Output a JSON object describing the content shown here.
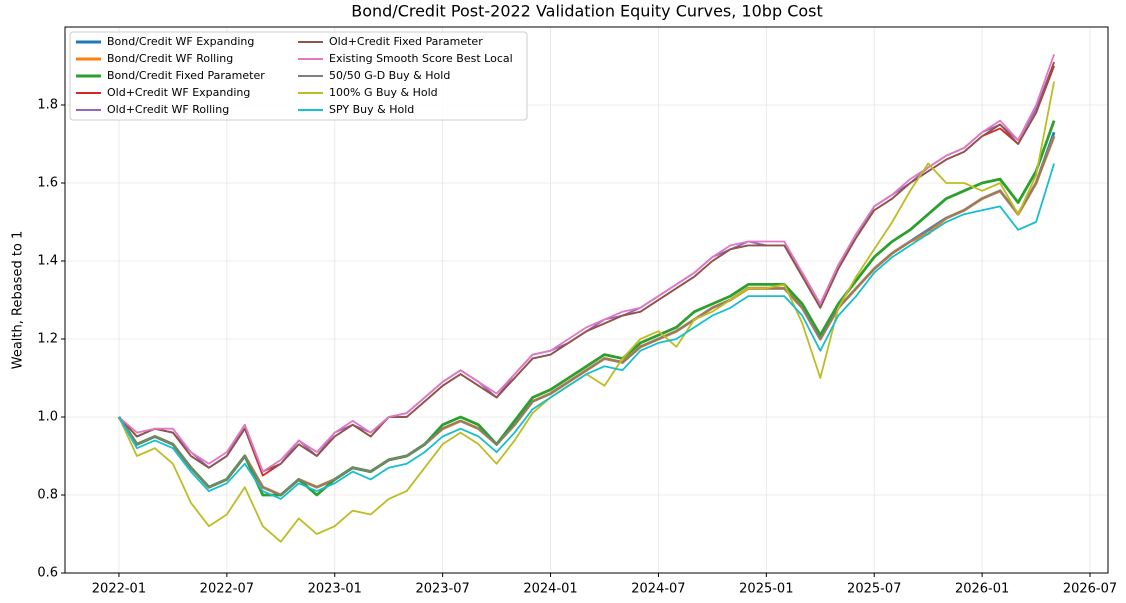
{
  "chart_data": {
    "type": "line",
    "title": "Bond/Credit Post-2022 Validation Equity Curves, 10bp Cost",
    "y_label": "Wealth, Rebased to 1",
    "x": [
      "2022-01",
      "2022-02",
      "2022-03",
      "2022-04",
      "2022-05",
      "2022-06",
      "2022-07",
      "2022-08",
      "2022-09",
      "2022-10",
      "2022-11",
      "2022-12",
      "2023-01",
      "2023-02",
      "2023-03",
      "2023-04",
      "2023-05",
      "2023-06",
      "2023-07",
      "2023-08",
      "2023-09",
      "2023-10",
      "2023-11",
      "2023-12",
      "2024-01",
      "2024-02",
      "2024-03",
      "2024-04",
      "2024-05",
      "2024-06",
      "2024-07",
      "2024-08",
      "2024-09",
      "2024-10",
      "2024-11",
      "2024-12",
      "2025-01",
      "2025-02",
      "2025-03",
      "2025-04",
      "2025-05",
      "2025-06",
      "2025-07",
      "2025-08",
      "2025-09",
      "2025-10",
      "2025-11",
      "2025-12",
      "2026-01",
      "2026-02",
      "2026-03",
      "2026-04",
      "2026-05"
    ],
    "xlim": [
      "2021-10",
      "2026-08"
    ],
    "xticks": [
      "2022-01",
      "2022-07",
      "2023-01",
      "2023-07",
      "2024-01",
      "2024-07",
      "2025-01",
      "2025-07",
      "2026-01",
      "2026-07"
    ],
    "ylim": [
      0.6,
      2.0
    ],
    "yticks": [
      0.6,
      0.8,
      {
        "value": 1,
        "label": "1.0"
      },
      1.2,
      1.4,
      1.6,
      1.8
    ],
    "grid": true,
    "legend": "upper left",
    "series": [
      {
        "name": "Bond/Credit WF Expanding",
        "color": "#1f77b4",
        "values": [
          1.0,
          0.93,
          0.95,
          0.93,
          0.87,
          0.82,
          0.84,
          0.9,
          0.82,
          0.8,
          0.84,
          0.82,
          0.84,
          0.87,
          0.86,
          0.89,
          0.9,
          0.93,
          0.97,
          0.99,
          0.97,
          0.93,
          0.98,
          1.04,
          1.06,
          1.09,
          1.12,
          1.15,
          1.14,
          1.18,
          1.2,
          1.22,
          1.25,
          1.28,
          1.3,
          1.33,
          1.33,
          1.33,
          1.28,
          1.2,
          1.28,
          1.33,
          1.38,
          1.42,
          1.45,
          1.48,
          1.51,
          1.53,
          1.56,
          1.58,
          1.52,
          1.6,
          1.73
        ]
      },
      {
        "name": "Bond/Credit WF Rolling",
        "color": "#ff7f0e",
        "values": [
          1.0,
          0.93,
          0.95,
          0.93,
          0.87,
          0.82,
          0.84,
          0.9,
          0.82,
          0.8,
          0.84,
          0.82,
          0.84,
          0.87,
          0.86,
          0.89,
          0.9,
          0.93,
          0.97,
          0.99,
          0.97,
          0.93,
          0.98,
          1.04,
          1.06,
          1.09,
          1.12,
          1.15,
          1.14,
          1.18,
          1.2,
          1.22,
          1.25,
          1.28,
          1.3,
          1.33,
          1.33,
          1.33,
          1.28,
          1.2,
          1.28,
          1.33,
          1.38,
          1.42,
          1.45,
          1.47,
          1.51,
          1.53,
          1.56,
          1.58,
          1.52,
          1.6,
          1.72
        ]
      },
      {
        "name": "Bond/Credit Fixed Parameter",
        "color": "#2ca02c",
        "values": [
          1.0,
          0.93,
          0.95,
          0.93,
          0.87,
          0.82,
          0.84,
          0.9,
          0.8,
          0.8,
          0.84,
          0.8,
          0.84,
          0.87,
          0.86,
          0.89,
          0.9,
          0.93,
          0.98,
          1.0,
          0.98,
          0.93,
          0.99,
          1.05,
          1.07,
          1.1,
          1.13,
          1.16,
          1.15,
          1.19,
          1.21,
          1.23,
          1.27,
          1.29,
          1.31,
          1.34,
          1.34,
          1.34,
          1.29,
          1.21,
          1.29,
          1.35,
          1.41,
          1.45,
          1.48,
          1.52,
          1.56,
          1.58,
          1.6,
          1.61,
          1.55,
          1.63,
          1.76
        ]
      },
      {
        "name": "Old+Credit WF Expanding",
        "color": "#d62728",
        "values": [
          1.0,
          0.95,
          0.97,
          0.96,
          0.9,
          0.87,
          0.9,
          0.97,
          0.85,
          0.88,
          0.93,
          0.9,
          0.95,
          0.98,
          0.95,
          1.0,
          1.0,
          1.04,
          1.08,
          1.11,
          1.08,
          1.05,
          1.1,
          1.15,
          1.16,
          1.19,
          1.22,
          1.24,
          1.26,
          1.27,
          1.3,
          1.33,
          1.36,
          1.4,
          1.43,
          1.44,
          1.44,
          1.44,
          1.36,
          1.28,
          1.38,
          1.46,
          1.53,
          1.56,
          1.6,
          1.63,
          1.66,
          1.68,
          1.72,
          1.74,
          1.7,
          1.78,
          1.9
        ]
      },
      {
        "name": "Old+Credit WF Rolling",
        "color": "#9467bd",
        "values": [
          1.0,
          0.95,
          0.97,
          0.96,
          0.91,
          0.87,
          0.9,
          0.98,
          0.86,
          0.88,
          0.94,
          0.9,
          0.96,
          0.98,
          0.96,
          1.0,
          1.01,
          1.05,
          1.09,
          1.12,
          1.09,
          1.05,
          1.11,
          1.16,
          1.17,
          1.19,
          1.22,
          1.25,
          1.26,
          1.28,
          1.31,
          1.34,
          1.37,
          1.41,
          1.43,
          1.45,
          1.44,
          1.44,
          1.37,
          1.29,
          1.39,
          1.46,
          1.54,
          1.57,
          1.6,
          1.64,
          1.67,
          1.69,
          1.73,
          1.75,
          1.71,
          1.79,
          1.91
        ]
      },
      {
        "name": "Old+Credit Fixed Parameter",
        "color": "#8c564b",
        "values": [
          1.0,
          0.95,
          0.97,
          0.96,
          0.9,
          0.87,
          0.9,
          0.97,
          0.86,
          0.88,
          0.93,
          0.9,
          0.95,
          0.98,
          0.95,
          1.0,
          1.0,
          1.04,
          1.08,
          1.11,
          1.08,
          1.05,
          1.1,
          1.15,
          1.16,
          1.19,
          1.22,
          1.24,
          1.26,
          1.27,
          1.3,
          1.33,
          1.36,
          1.4,
          1.43,
          1.44,
          1.44,
          1.44,
          1.36,
          1.28,
          1.38,
          1.46,
          1.53,
          1.56,
          1.6,
          1.63,
          1.66,
          1.68,
          1.72,
          1.75,
          1.7,
          1.78,
          1.91
        ]
      },
      {
        "name": "Existing Smooth Score Best Local",
        "color": "#e377c2",
        "values": [
          1.0,
          0.96,
          0.97,
          0.97,
          0.91,
          0.88,
          0.91,
          0.98,
          0.86,
          0.89,
          0.94,
          0.91,
          0.96,
          0.99,
          0.96,
          1.0,
          1.01,
          1.05,
          1.09,
          1.12,
          1.09,
          1.06,
          1.11,
          1.16,
          1.17,
          1.2,
          1.23,
          1.25,
          1.27,
          1.28,
          1.31,
          1.34,
          1.37,
          1.41,
          1.44,
          1.45,
          1.45,
          1.45,
          1.37,
          1.29,
          1.39,
          1.47,
          1.54,
          1.57,
          1.61,
          1.64,
          1.67,
          1.69,
          1.73,
          1.76,
          1.71,
          1.8,
          1.93
        ]
      },
      {
        "name": "50/50 G-D Buy & Hold",
        "color": "#7f7f7f",
        "values": [
          1.0,
          0.93,
          0.95,
          0.93,
          0.87,
          0.82,
          0.84,
          0.9,
          0.82,
          0.8,
          0.84,
          0.82,
          0.84,
          0.87,
          0.86,
          0.89,
          0.9,
          0.93,
          0.97,
          0.99,
          0.97,
          0.93,
          0.98,
          1.04,
          1.06,
          1.09,
          1.12,
          1.15,
          1.14,
          1.18,
          1.2,
          1.22,
          1.25,
          1.28,
          1.3,
          1.33,
          1.33,
          1.33,
          1.28,
          1.2,
          1.28,
          1.33,
          1.38,
          1.42,
          1.45,
          1.48,
          1.51,
          1.53,
          1.56,
          1.58,
          1.52,
          1.6,
          1.72
        ]
      },
      {
        "name": "100% G Buy & Hold",
        "color": "#bcbd22",
        "values": [
          1.0,
          0.9,
          0.92,
          0.88,
          0.78,
          0.72,
          0.75,
          0.82,
          0.72,
          0.68,
          0.74,
          0.7,
          0.72,
          0.76,
          0.75,
          0.79,
          0.81,
          0.87,
          0.93,
          0.96,
          0.93,
          0.88,
          0.94,
          1.01,
          1.05,
          1.08,
          1.11,
          1.08,
          1.15,
          1.2,
          1.22,
          1.18,
          1.25,
          1.27,
          1.3,
          1.33,
          1.33,
          1.34,
          1.24,
          1.1,
          1.28,
          1.36,
          1.43,
          1.5,
          1.58,
          1.65,
          1.6,
          1.6,
          1.58,
          1.6,
          1.52,
          1.62,
          1.86
        ]
      },
      {
        "name": "SPY Buy & Hold",
        "color": "#17becf",
        "values": [
          1.0,
          0.92,
          0.94,
          0.92,
          0.86,
          0.81,
          0.83,
          0.88,
          0.81,
          0.79,
          0.83,
          0.81,
          0.83,
          0.86,
          0.84,
          0.87,
          0.88,
          0.91,
          0.95,
          0.97,
          0.95,
          0.91,
          0.96,
          1.02,
          1.05,
          1.08,
          1.11,
          1.13,
          1.12,
          1.17,
          1.19,
          1.2,
          1.23,
          1.26,
          1.28,
          1.31,
          1.31,
          1.31,
          1.26,
          1.17,
          1.26,
          1.31,
          1.37,
          1.41,
          1.44,
          1.47,
          1.5,
          1.52,
          1.53,
          1.54,
          1.48,
          1.5,
          1.65
        ]
      }
    ]
  }
}
